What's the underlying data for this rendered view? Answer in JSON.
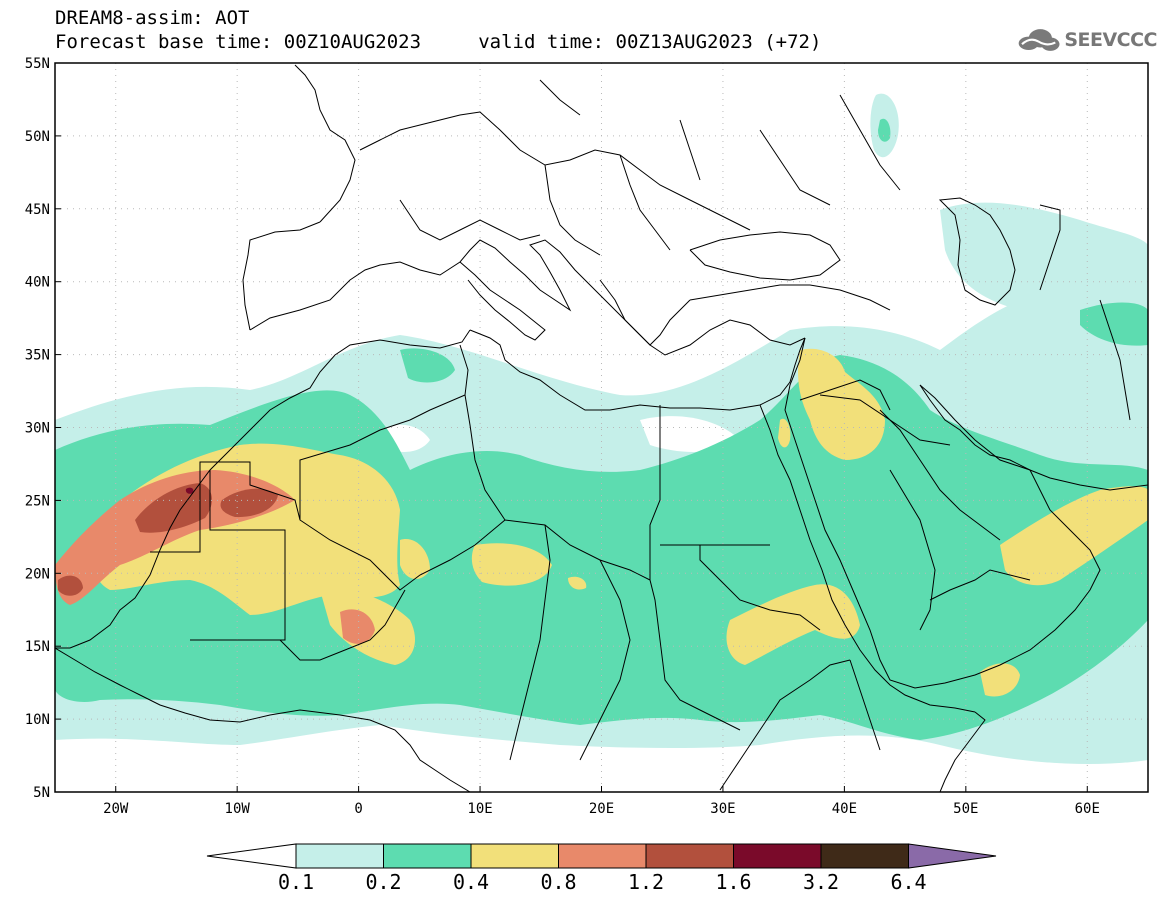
{
  "title": {
    "line1": "DREAM8-assim: AOT",
    "line2": "Forecast base time: 00Z10AUG2023     valid time: 00Z13AUG2023 (+72)"
  },
  "logo": {
    "text": "SEEVCCC",
    "icon": "cloud-icon"
  },
  "map": {
    "lat_labels": [
      "55N",
      "50N",
      "45N",
      "40N",
      "35N",
      "30N",
      "25N",
      "20N",
      "15N",
      "10N",
      "5N"
    ],
    "lat_values": [
      55,
      50,
      45,
      40,
      35,
      30,
      25,
      20,
      15,
      10,
      5
    ],
    "lon_labels": [
      "20W",
      "10W",
      "0",
      "10E",
      "20E",
      "30E",
      "40E",
      "50E",
      "60E"
    ],
    "lon_values": [
      -20,
      -10,
      0,
      10,
      20,
      30,
      40,
      50,
      60
    ],
    "extent": {
      "lon_min": -25,
      "lon_max": 65,
      "lat_min": 5,
      "lat_max": 55
    }
  },
  "colorbar": {
    "labels": [
      "0.1",
      "0.2",
      "0.4",
      "0.8",
      "1.2",
      "1.6",
      "3.2",
      "6.4"
    ],
    "colors": [
      "#ffffff",
      "#c5efe9",
      "#5ddcb0",
      "#f2e07a",
      "#e8896a",
      "#b2503d",
      "#7a0a2a",
      "#3f2a18",
      "#8a6aa8"
    ]
  },
  "aot_colors": {
    "c1": "#c5efe9",
    "c2": "#5ddcb0",
    "c3": "#f2e07a",
    "c4": "#e8896a",
    "c5": "#b2503d",
    "c6": "#7a0a2a"
  }
}
